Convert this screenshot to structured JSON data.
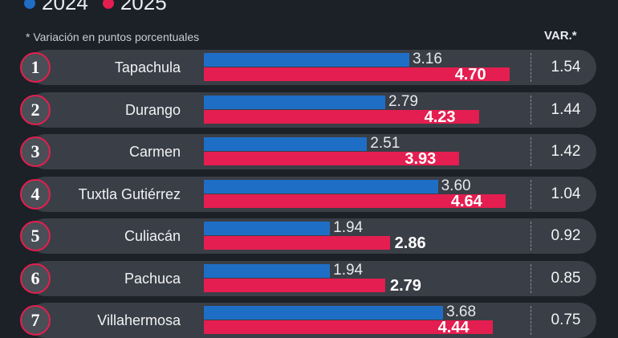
{
  "legend": [
    {
      "label": "2024",
      "color": "#1f6ec6"
    },
    {
      "label": "2025",
      "color": "#e41e50"
    }
  ],
  "note": "* Variación en puntos porcentuales",
  "var_header": "VAR.*",
  "chart_data": {
    "type": "bar",
    "orientation": "horizontal",
    "categories": [
      "Tapachula",
      "Durango",
      "Carmen",
      "Tuxtla Gutiérrez",
      "Culiacán",
      "Pachuca",
      "Villahermosa"
    ],
    "ranks": [
      "1",
      "2",
      "3",
      "4",
      "5",
      "6",
      "7"
    ],
    "series": [
      {
        "name": "2024",
        "values": [
          "3.16",
          "2.79",
          "2.51",
          "3.60",
          "1.94",
          "1.94",
          "3.68"
        ]
      },
      {
        "name": "2025",
        "values": [
          "4.70",
          "4.23",
          "3.93",
          "4.64",
          "2.86",
          "2.79",
          "4.44"
        ]
      }
    ],
    "variation": [
      "1.54",
      "1.44",
      "1.42",
      "1.04",
      "0.92",
      "0.85",
      "0.75"
    ],
    "xlim": [
      0,
      5
    ]
  }
}
